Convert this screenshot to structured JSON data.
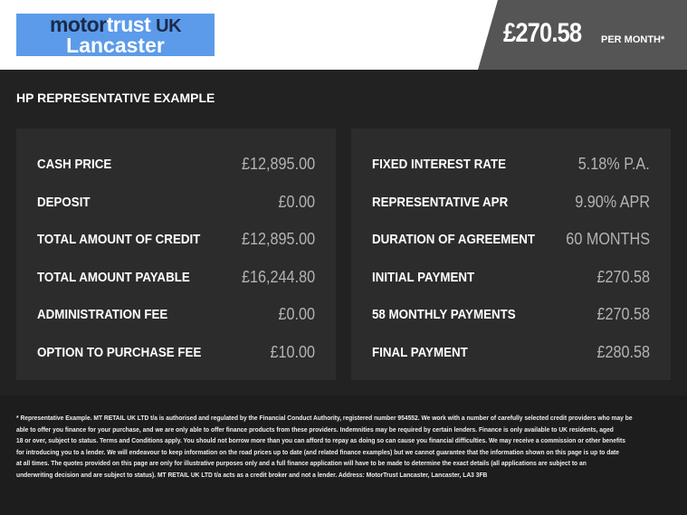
{
  "logo": {
    "motor": "motor",
    "trust": "trust",
    "uk": "UK",
    "location": "Lancaster"
  },
  "header": {
    "price": "£270.58",
    "per_month": "PER MONTH*"
  },
  "section_title": "HP REPRESENTATIVE EXAMPLE",
  "left_panel": [
    {
      "label": "CASH PRICE",
      "value": "£12,895.00"
    },
    {
      "label": "DEPOSIT",
      "value": "£0.00"
    },
    {
      "label": "TOTAL AMOUNT OF CREDIT",
      "value": "£12,895.00"
    },
    {
      "label": "TOTAL AMOUNT PAYABLE",
      "value": "£16,244.80"
    },
    {
      "label": "ADMINISTRATION FEE",
      "value": "£0.00"
    },
    {
      "label": "OPTION TO PURCHASE FEE",
      "value": "£10.00"
    }
  ],
  "right_panel": [
    {
      "label": "FIXED INTEREST RATE",
      "value": "5.18% P.A."
    },
    {
      "label": "REPRESENTATIVE APR",
      "value": "9.90% APR"
    },
    {
      "label": "DURATION OF AGREEMENT",
      "value": "60 MONTHS"
    },
    {
      "label": "INITIAL PAYMENT",
      "value": "£270.58"
    },
    {
      "label": "58 MONTHLY PAYMENTS",
      "value": "£270.58"
    },
    {
      "label": "FINAL PAYMENT",
      "value": "£280.58"
    }
  ],
  "disclaimer": [
    "* Representative Example. MT RETAIL UK LTD t/a is authorised and regulated by the Financial Conduct Authority, registered number 954552. We work with a number of carefully selected credit providers who may be",
    "able to offer you finance for your purchase, and we are only able to offer finance products from these providers. Indemnities may be required by certain lenders. Finance is only available to UK residents, aged",
    "18 or over, subject to status. Terms and Conditions apply. You should not borrow more than you can afford to repay as doing so can cause you financial difficulties. We may receive a commission or other benefits",
    "for introducing you to a lender. We will endeavour to keep information on the road prices up to date (and related finance examples) but we cannot guarantee that the information shown on this page is up to date",
    "at all times. The quotes provided on this page are only for illustrative purposes only and a full finance application will have to be made to determine the exact details (all applications are subject to an",
    "underwriting decision and are subject to status). MT RETAIL UK LTD t/a acts as a credit broker and not a lender. Address: MotorTrust Lancaster, Lancaster, LA3 3FB"
  ],
  "colors": {
    "logo_bg": "#5b9bea",
    "price_bar": "#555555",
    "panel": "#2c2c2c",
    "background": "#222222"
  }
}
